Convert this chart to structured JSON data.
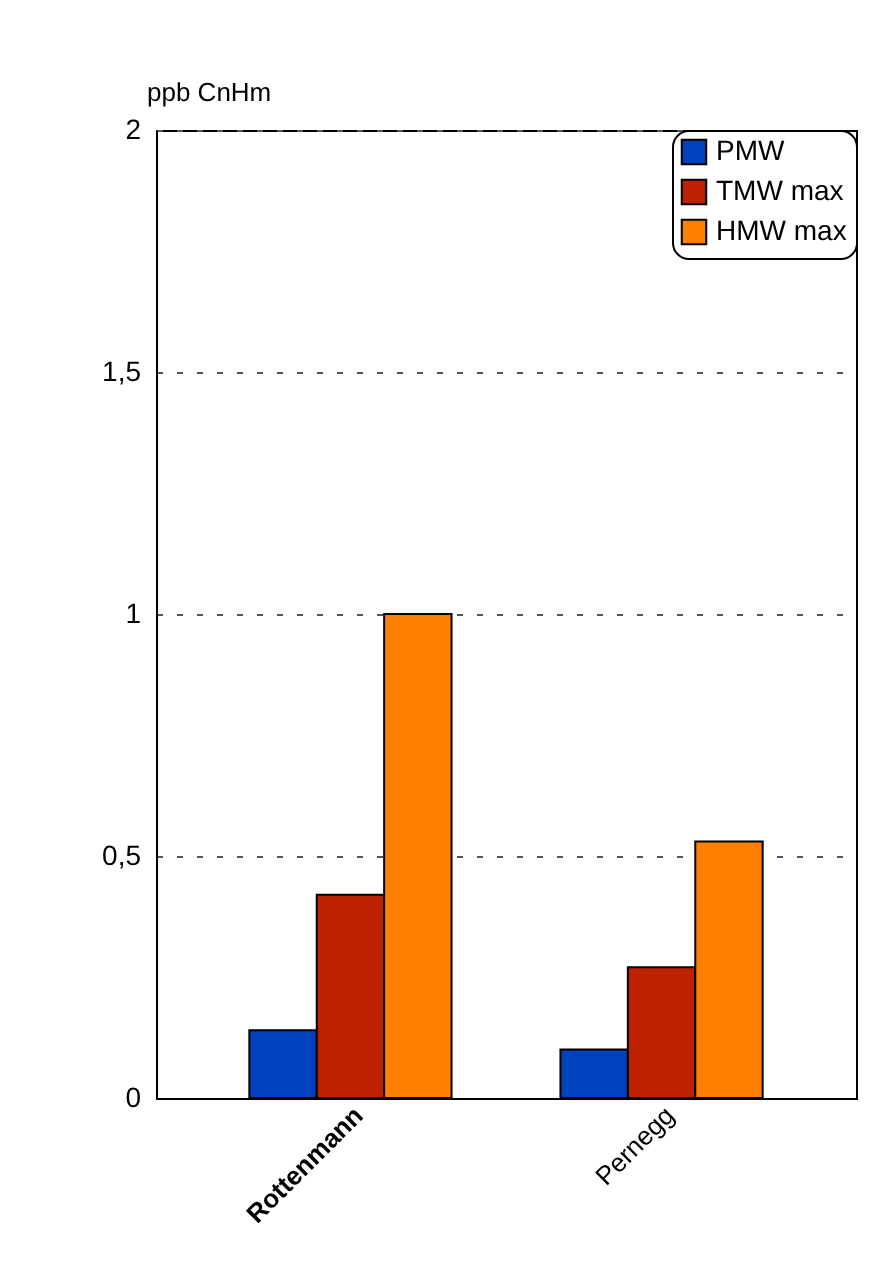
{
  "chart_data": {
    "type": "bar",
    "ylabel": "ppb CnHm",
    "categories": [
      "Rottenmann",
      "Pernegg"
    ],
    "series": [
      {
        "name": "PMW",
        "color": "#0041be",
        "values": [
          0.14,
          0.1
        ]
      },
      {
        "name": "TMW max",
        "color": "#bd2100",
        "values": [
          0.42,
          0.27
        ]
      },
      {
        "name": "HMW max",
        "color": "#ff8000",
        "values": [
          1.0,
          0.53
        ]
      }
    ],
    "ylim": [
      0,
      2
    ],
    "yticks": [
      0,
      {
        "value": 0.5,
        "label": "0,5"
      },
      1,
      {
        "value": 1.5,
        "label": "1,5"
      },
      2
    ],
    "grid": "y",
    "legend": "top right"
  }
}
